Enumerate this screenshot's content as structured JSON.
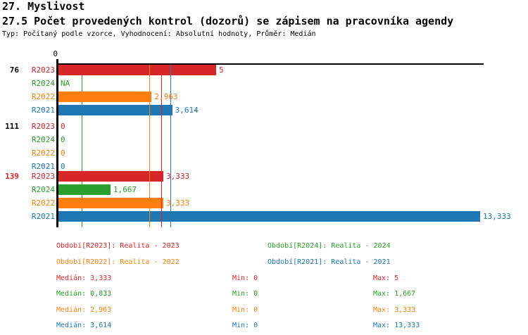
{
  "header": {
    "title": "27. Myslivost",
    "subtitle": "27.5 Počet provedených kontrol (dozorů) se zápisem na pracovníka agendy",
    "meta": "Typ: Počítaný podle vzorce, Vyhodnocení: Absolutní hodnoty, Průměr: Medián"
  },
  "colors": {
    "R2023": "#d62728",
    "R2024": "#2ca02c",
    "R2022": "#ff7f0e",
    "R2021": "#1f77b4",
    "axis": "#000000",
    "group_highlight": "#d62728",
    "group_normal": "#000000"
  },
  "chart_data": {
    "type": "bar",
    "orientation": "horizontal",
    "title": "27.5 Počet provedených kontrol (dozorů) se zápisem na pracovníka agendy",
    "x_axis": {
      "min": 0,
      "max": 13.333,
      "tick_labels": [
        "0"
      ]
    },
    "series_order": [
      "R2023",
      "R2024",
      "R2022",
      "R2021"
    ],
    "groups": [
      {
        "id": "76",
        "highlight": false,
        "bars": [
          {
            "series": "R2023",
            "value": 5,
            "label": "5"
          },
          {
            "series": "R2024",
            "value": null,
            "label": "NA"
          },
          {
            "series": "R2022",
            "value": 2.963,
            "label": "2,963"
          },
          {
            "series": "R2021",
            "value": 3.614,
            "label": "3,614"
          }
        ]
      },
      {
        "id": "111",
        "highlight": false,
        "bars": [
          {
            "series": "R2023",
            "value": 0,
            "label": "0"
          },
          {
            "series": "R2024",
            "value": 0,
            "label": "0"
          },
          {
            "series": "R2022",
            "value": 0,
            "label": "0"
          },
          {
            "series": "R2021",
            "value": 0,
            "label": "0"
          }
        ]
      },
      {
        "id": "139",
        "highlight": true,
        "bars": [
          {
            "series": "R2023",
            "value": 3.333,
            "label": "3,333"
          },
          {
            "series": "R2024",
            "value": 1.667,
            "label": "1,667"
          },
          {
            "series": "R2022",
            "value": 3.333,
            "label": "3,333"
          },
          {
            "series": "R2021",
            "value": 13.333,
            "label": "13,333"
          }
        ]
      }
    ],
    "median_lines": [
      {
        "series": "R2023",
        "value": 3.333
      },
      {
        "series": "R2024",
        "value": 0.833
      },
      {
        "series": "R2022",
        "value": 2.963
      },
      {
        "series": "R2021",
        "value": 3.614
      }
    ]
  },
  "legend": [
    {
      "series": "R2023",
      "label": "Období[R2023]: Realita - 2023"
    },
    {
      "series": "R2024",
      "label": "Období[R2024]: Realita - 2024"
    },
    {
      "series": "R2022",
      "label": "Období[R2022]: Realita - 2022"
    },
    {
      "series": "R2021",
      "label": "Období[R2021]: Realita - 2021"
    }
  ],
  "stats": [
    {
      "series": "R2023",
      "median": "Medián: 3,333",
      "min": "Min: 0",
      "max": "Max: 5"
    },
    {
      "series": "R2024",
      "median": "Medián: 0,833",
      "min": "Min: 0",
      "max": "Max: 1,667"
    },
    {
      "series": "R2022",
      "median": "Medián: 2,963",
      "min": "Min: 0",
      "max": "Max: 3,333"
    },
    {
      "series": "R2021",
      "median": "Medián: 3,614",
      "min": "Min: 0",
      "max": "Max: 13,333"
    }
  ]
}
